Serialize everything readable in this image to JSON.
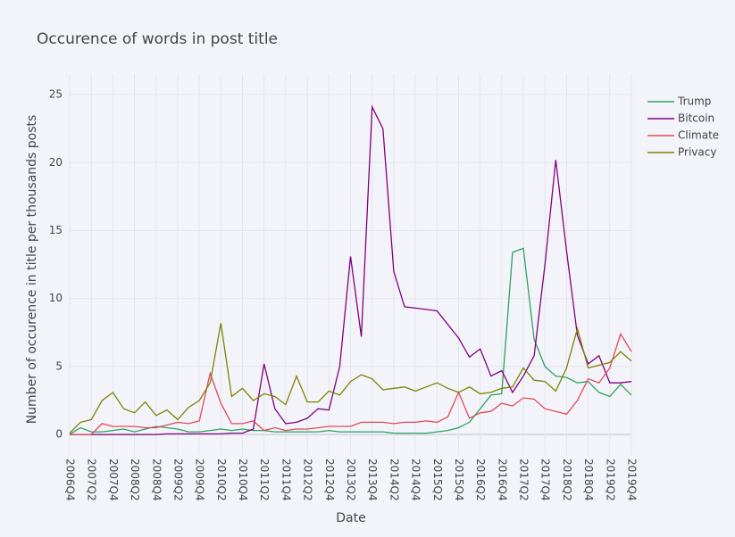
{
  "chart_data": {
    "type": "line",
    "title": "Occurence of words in post title",
    "x_label": "Date",
    "y_label": "Number of occurence in title per thousands posts",
    "categories": [
      "2006Q4",
      null,
      "2007Q2",
      null,
      "2007Q4",
      null,
      "2008Q2",
      null,
      "2008Q4",
      null,
      "2009Q2",
      null,
      "2009Q4",
      null,
      "2010Q2",
      null,
      "2010Q4",
      null,
      "2011Q2",
      null,
      "2011Q4",
      null,
      "2012Q2",
      null,
      "2012Q4",
      null,
      "2013Q2",
      null,
      "2013Q4",
      null,
      "2014Q2",
      null,
      "2014Q4",
      null,
      "2015Q2",
      null,
      "2015Q4",
      null,
      "2016Q2",
      null,
      "2016Q4",
      null,
      "2017Q2",
      null,
      "2017Q4",
      null,
      "2018Q2",
      null,
      "2018Q4",
      null,
      "2019Q2",
      null,
      "2019Q4"
    ],
    "series": [
      {
        "name": "Trump",
        "color": "#2ca25f",
        "values": [
          0,
          0.5,
          0.2,
          0.2,
          0.3,
          0.4,
          0.2,
          0.4,
          0.6,
          0.5,
          0.4,
          0.2,
          0.2,
          0.3,
          0.4,
          0.3,
          0.4,
          0.3,
          0.3,
          0.2,
          0.2,
          0.2,
          0.2,
          0.2,
          0.3,
          0.2,
          0.2,
          0.2,
          0.2,
          0.2,
          0.1,
          0.1,
          0.1,
          0.1,
          0.2,
          0.3,
          0.5,
          0.9,
          1.9,
          2.9,
          3.0,
          13.4,
          13.7,
          7.0,
          5.0,
          4.3,
          4.2,
          3.8,
          3.9,
          3.1,
          2.8,
          3.7,
          2.9
        ]
      },
      {
        "name": "Bitcoin",
        "color": "#800080",
        "values": [
          0,
          0,
          0,
          0,
          0,
          0,
          0,
          0,
          0,
          0.05,
          0.05,
          0.05,
          0.05,
          0.05,
          0.05,
          0.1,
          0.1,
          0.4,
          5.2,
          1.9,
          0.8,
          0.9,
          1.2,
          1.9,
          1.8,
          5.0,
          13.1,
          7.2,
          24.1,
          22.5,
          12.0,
          9.4,
          9.3,
          9.2,
          9.1,
          8.1,
          7.1,
          5.7,
          6.3,
          4.3,
          4.7,
          3.1,
          4.3,
          5.8,
          12.5,
          20.2,
          13.5,
          7.3,
          5.2,
          5.8,
          3.8,
          3.8,
          3.9
        ]
      },
      {
        "name": "Climate",
        "color": "#e0485a",
        "values": [
          0,
          0,
          0,
          0.8,
          0.6,
          0.6,
          0.6,
          0.5,
          0.5,
          0.7,
          0.9,
          0.8,
          1.0,
          4.5,
          2.3,
          0.8,
          0.8,
          1.0,
          0.3,
          0.5,
          0.3,
          0.4,
          0.4,
          0.5,
          0.6,
          0.6,
          0.6,
          0.9,
          0.9,
          0.9,
          0.8,
          0.9,
          0.9,
          1.0,
          0.9,
          1.3,
          3.1,
          1.2,
          1.6,
          1.7,
          2.3,
          2.1,
          2.7,
          2.6,
          1.9,
          1.7,
          1.5,
          2.5,
          4.1,
          3.8,
          4.9,
          7.4,
          6.1
        ]
      },
      {
        "name": "Privacy",
        "color": "#808000",
        "values": [
          0.1,
          0.9,
          1.1,
          2.5,
          3.1,
          1.9,
          1.6,
          2.4,
          1.4,
          1.8,
          1.1,
          2.0,
          2.5,
          3.8,
          8.2,
          2.8,
          3.4,
          2.5,
          3.0,
          2.8,
          2.2,
          4.3,
          2.4,
          2.4,
          3.2,
          2.9,
          3.9,
          4.4,
          4.1,
          3.3,
          3.4,
          3.5,
          3.2,
          3.5,
          3.8,
          3.4,
          3.1,
          3.5,
          3.0,
          3.1,
          3.4,
          3.5,
          4.9,
          4.0,
          3.9,
          3.2,
          4.9,
          7.8,
          4.9,
          5.1,
          5.3,
          6.1,
          5.4
        ]
      }
    ],
    "ylim": [
      -1.5,
      26.5
    ],
    "yticks": [
      0,
      5,
      10,
      15,
      20,
      25
    ],
    "grid": true,
    "legend": "right"
  }
}
